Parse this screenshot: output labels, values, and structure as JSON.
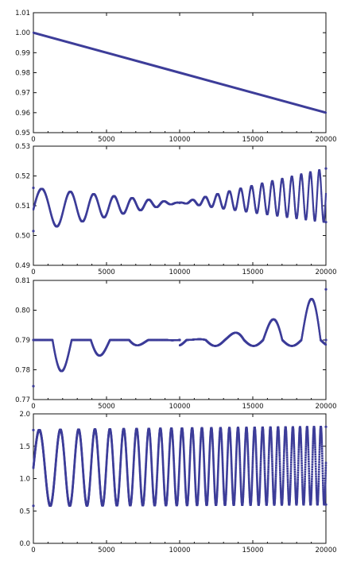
{
  "chart_data": [
    {
      "type": "line",
      "title": "",
      "xlabel": "",
      "ylabel": "",
      "xlim": [
        0,
        20000
      ],
      "ylim": [
        0.95,
        1.01
      ],
      "xticks": [
        0,
        5000,
        10000,
        15000,
        20000
      ],
      "xtick_labels": [
        "0",
        "5000",
        "10000",
        "15000",
        "20000"
      ],
      "yticks": [
        0.95,
        0.96,
        0.97,
        0.98,
        0.99,
        1.0,
        1.01
      ],
      "ytick_labels": [
        "0.95",
        "0.96",
        "0.97",
        "0.98",
        "0.99",
        "1.00",
        "1.01"
      ],
      "grid": false,
      "color": "#3d3d99",
      "series": [
        {
          "x": [
            0,
            5000,
            10000,
            15000,
            20000
          ],
          "values": [
            1.0,
            0.99,
            0.98,
            0.97,
            0.96
          ]
        }
      ]
    },
    {
      "type": "scatter",
      "title": "",
      "xlabel": "",
      "ylabel": "",
      "xlim": [
        0,
        20000
      ],
      "ylim": [
        0.49,
        0.53
      ],
      "xticks": [
        0,
        5000,
        10000,
        15000,
        20000
      ],
      "xtick_labels": [
        "0",
        "5000",
        "10000",
        "15000",
        "20000"
      ],
      "yticks": [
        0.49,
        0.5,
        0.51,
        0.52,
        0.53
      ],
      "ytick_labels": [
        "0.49",
        "0.50",
        "0.51",
        "0.52",
        "0.53"
      ],
      "grid": false,
      "color": "#3d3d99",
      "series": [
        {
          "x": [
            0,
            10000,
            20000
          ],
          "values": [
            0.516,
            0.511,
            0.5225
          ]
        },
        {
          "x": [
            0,
            10000,
            20000
          ],
          "values": [
            0.5015,
            0.511,
            0.5045
          ]
        }
      ]
    },
    {
      "type": "scatter",
      "title": "",
      "xlabel": "",
      "ylabel": "",
      "xlim": [
        0,
        20000
      ],
      "ylim": [
        0.77,
        0.81
      ],
      "xticks": [
        0,
        5000,
        10000,
        15000,
        20000
      ],
      "xtick_labels": [
        "0",
        "5000",
        "10000",
        "15000",
        "20000"
      ],
      "yticks": [
        0.77,
        0.78,
        0.79,
        0.8,
        0.81
      ],
      "ytick_labels": [
        "0.77",
        "0.78",
        "0.79",
        "0.80",
        "0.81"
      ],
      "grid": false,
      "color": "#3d3d99",
      "series": [
        {
          "x": [
            0,
            10000,
            20000
          ],
          "values": [
            0.79,
            0.79,
            0.807
          ]
        },
        {
          "x": [
            0,
            10000,
            20000
          ],
          "values": [
            0.7745,
            0.79,
            0.79
          ]
        }
      ]
    },
    {
      "type": "scatter",
      "title": "",
      "xlabel": "",
      "ylabel": "",
      "xlim": [
        0,
        20000
      ],
      "ylim": [
        0.0,
        2.0
      ],
      "xticks": [
        0,
        5000,
        10000,
        15000,
        20000
      ],
      "xtick_labels": [
        "0",
        "5000",
        "10000",
        "15000",
        "20000"
      ],
      "yticks": [
        0.0,
        0.5,
        1.0,
        1.5,
        2.0
      ],
      "ytick_labels": [
        "0.0",
        "0.5",
        "1.0",
        "1.5",
        "2.0"
      ],
      "grid": false,
      "color": "#3d3d99",
      "series": [
        {
          "x": [
            0,
            20000
          ],
          "values": [
            1.75,
            1.8
          ]
        },
        {
          "x": [
            0,
            20000
          ],
          "values": [
            0.58,
            0.6
          ]
        }
      ]
    }
  ]
}
